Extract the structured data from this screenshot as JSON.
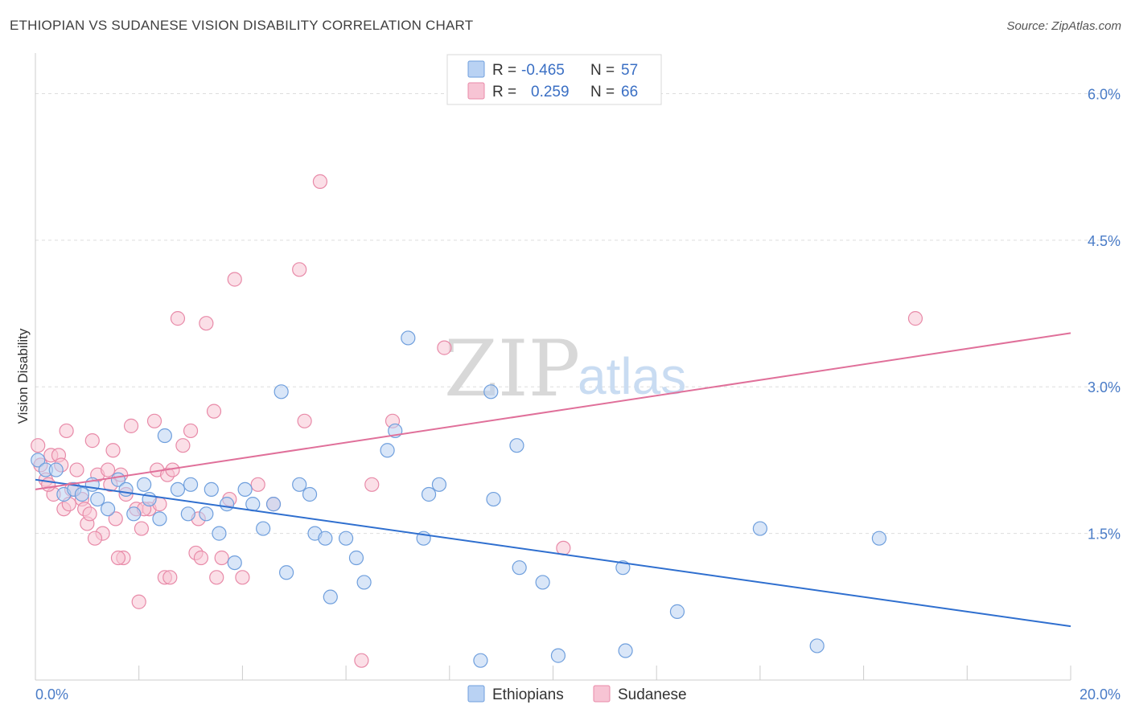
{
  "header": {
    "title": "ETHIOPIAN VS SUDANESE VISION DISABILITY CORRELATION CHART",
    "source": "Source: ZipAtlas.com"
  },
  "watermark": {
    "zip": "ZIP",
    "atlas": "atlas"
  },
  "colors": {
    "ethiopians_fill": "#b9d2f3",
    "ethiopians_stroke": "#6f9fdd",
    "ethiopians_line": "#2f6fcf",
    "sudanese_fill": "#f7c4d4",
    "sudanese_stroke": "#e88aa8",
    "sudanese_line": "#e0709a",
    "tick_label": "#4a7cc7",
    "grid": "#dddddd"
  },
  "legend_top": {
    "rows": [
      {
        "r_label": "R =",
        "r_value": "-0.465",
        "n_label": "N =",
        "n_value": "57"
      },
      {
        "r_label": "R =",
        "r_value": "0.259",
        "n_label": "N =",
        "n_value": "66"
      }
    ]
  },
  "chart_data": {
    "type": "scatter",
    "title": "ETHIOPIAN VS SUDANESE VISION DISABILITY CORRELATION CHART",
    "xlabel": "",
    "ylabel": "Vision Disability",
    "xlim": [
      0,
      20
    ],
    "ylim": [
      0,
      6.3
    ],
    "x_tick_labels": [
      "0.0%",
      "20.0%"
    ],
    "y_ticks": [
      1.5,
      3.0,
      4.5,
      6.0
    ],
    "y_tick_labels": [
      "1.5%",
      "3.0%",
      "4.5%",
      "6.0%"
    ],
    "grid": true,
    "legend_position": "top-center",
    "series": [
      {
        "name": "Ethiopians",
        "r": -0.465,
        "n": 57,
        "trend": {
          "x": [
            0,
            20
          ],
          "y": [
            2.05,
            0.55
          ]
        },
        "points": [
          [
            0.05,
            2.25
          ],
          [
            0.2,
            2.15
          ],
          [
            0.4,
            2.15
          ],
          [
            0.55,
            1.9
          ],
          [
            0.75,
            1.95
          ],
          [
            0.9,
            1.9
          ],
          [
            1.1,
            2.0
          ],
          [
            1.2,
            1.85
          ],
          [
            1.4,
            1.75
          ],
          [
            1.6,
            2.05
          ],
          [
            1.75,
            1.95
          ],
          [
            1.9,
            1.7
          ],
          [
            2.1,
            2.0
          ],
          [
            2.2,
            1.85
          ],
          [
            2.4,
            1.65
          ],
          [
            2.5,
            2.5
          ],
          [
            2.75,
            1.95
          ],
          [
            2.95,
            1.7
          ],
          [
            3.0,
            2.0
          ],
          [
            3.3,
            1.7
          ],
          [
            3.4,
            1.95
          ],
          [
            3.55,
            1.5
          ],
          [
            3.7,
            1.8
          ],
          [
            3.85,
            1.2
          ],
          [
            4.05,
            1.95
          ],
          [
            4.2,
            1.8
          ],
          [
            4.4,
            1.55
          ],
          [
            4.6,
            1.8
          ],
          [
            4.75,
            2.95
          ],
          [
            4.85,
            1.1
          ],
          [
            5.1,
            2.0
          ],
          [
            5.3,
            1.9
          ],
          [
            5.4,
            1.5
          ],
          [
            5.6,
            1.45
          ],
          [
            5.7,
            0.85
          ],
          [
            6.0,
            1.45
          ],
          [
            6.2,
            1.25
          ],
          [
            6.35,
            1.0
          ],
          [
            6.8,
            2.35
          ],
          [
            6.95,
            2.55
          ],
          [
            7.2,
            3.5
          ],
          [
            7.5,
            1.45
          ],
          [
            7.6,
            1.9
          ],
          [
            7.8,
            2.0
          ],
          [
            8.6,
            0.2
          ],
          [
            8.8,
            2.95
          ],
          [
            8.85,
            1.85
          ],
          [
            9.3,
            2.4
          ],
          [
            9.35,
            1.15
          ],
          [
            9.8,
            1.0
          ],
          [
            10.1,
            0.25
          ],
          [
            11.35,
            1.15
          ],
          [
            11.4,
            0.3
          ],
          [
            12.4,
            0.7
          ],
          [
            14.0,
            1.55
          ],
          [
            15.1,
            0.35
          ],
          [
            16.3,
            1.45
          ]
        ]
      },
      {
        "name": "Sudanese",
        "r": 0.259,
        "n": 66,
        "trend": {
          "x": [
            0,
            20
          ],
          "y": [
            1.95,
            3.55
          ]
        },
        "points": [
          [
            0.05,
            2.4
          ],
          [
            0.1,
            2.2
          ],
          [
            0.2,
            2.05
          ],
          [
            0.3,
            2.3
          ],
          [
            0.35,
            1.9
          ],
          [
            0.45,
            2.3
          ],
          [
            0.5,
            2.2
          ],
          [
            0.55,
            1.75
          ],
          [
            0.6,
            2.55
          ],
          [
            0.7,
            1.95
          ],
          [
            0.8,
            2.15
          ],
          [
            0.9,
            1.85
          ],
          [
            0.95,
            1.75
          ],
          [
            1.0,
            1.6
          ],
          [
            1.05,
            1.7
          ],
          [
            1.1,
            2.45
          ],
          [
            1.2,
            2.1
          ],
          [
            1.3,
            1.5
          ],
          [
            1.4,
            2.15
          ],
          [
            1.45,
            2.0
          ],
          [
            1.5,
            2.35
          ],
          [
            1.55,
            1.65
          ],
          [
            1.65,
            2.1
          ],
          [
            1.7,
            1.25
          ],
          [
            1.75,
            1.9
          ],
          [
            1.85,
            2.6
          ],
          [
            1.95,
            1.75
          ],
          [
            2.0,
            0.8
          ],
          [
            2.05,
            1.55
          ],
          [
            2.2,
            1.75
          ],
          [
            2.3,
            2.65
          ],
          [
            2.35,
            2.15
          ],
          [
            2.4,
            1.8
          ],
          [
            2.5,
            1.05
          ],
          [
            2.55,
            2.1
          ],
          [
            2.65,
            2.15
          ],
          [
            2.75,
            3.7
          ],
          [
            2.85,
            2.4
          ],
          [
            3.0,
            2.55
          ],
          [
            3.1,
            1.3
          ],
          [
            3.15,
            1.65
          ],
          [
            3.3,
            3.65
          ],
          [
            3.45,
            2.75
          ],
          [
            3.5,
            1.05
          ],
          [
            3.6,
            1.25
          ],
          [
            3.75,
            1.85
          ],
          [
            3.85,
            4.1
          ],
          [
            4.0,
            1.05
          ],
          [
            4.3,
            2.0
          ],
          [
            4.6,
            1.8
          ],
          [
            5.1,
            4.2
          ],
          [
            5.2,
            2.65
          ],
          [
            5.5,
            5.1
          ],
          [
            6.3,
            0.2
          ],
          [
            6.5,
            2.0
          ],
          [
            6.9,
            2.65
          ],
          [
            7.9,
            3.4
          ],
          [
            10.2,
            1.35
          ],
          [
            17.0,
            3.7
          ],
          [
            1.15,
            1.45
          ],
          [
            0.25,
            2.0
          ],
          [
            1.6,
            1.25
          ],
          [
            2.1,
            1.75
          ],
          [
            3.2,
            1.25
          ],
          [
            2.6,
            1.05
          ],
          [
            0.65,
            1.8
          ]
        ]
      }
    ]
  },
  "bottom_legend": {
    "items": [
      {
        "label": "Ethiopians"
      },
      {
        "label": "Sudanese"
      }
    ]
  }
}
